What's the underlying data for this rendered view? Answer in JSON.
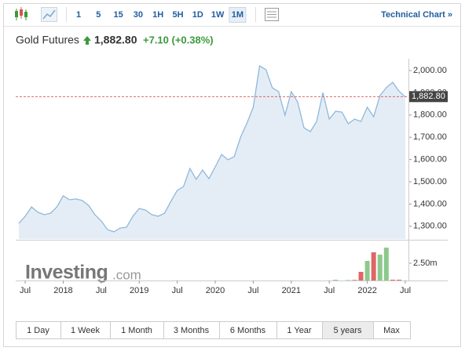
{
  "toolbar": {
    "intervals": [
      "1",
      "5",
      "15",
      "30",
      "1H",
      "5H",
      "1D",
      "1W",
      "1M"
    ],
    "selected_interval": 8,
    "technical_chart": "Technical Chart »"
  },
  "header": {
    "title": "Gold Futures",
    "change": "+7.10 (+0.38%)"
  },
  "chart_data": [
    {
      "type": "area",
      "x": [
        "2017-06",
        "2017-07",
        "2017-08",
        "2017-09",
        "2017-10",
        "2017-11",
        "2017-12",
        "2018-01",
        "2018-02",
        "2018-03",
        "2018-04",
        "2018-05",
        "2018-06",
        "2018-07",
        "2018-08",
        "2018-09",
        "2018-10",
        "2018-11",
        "2018-12",
        "2019-01",
        "2019-02",
        "2019-03",
        "2019-04",
        "2019-05",
        "2019-06",
        "2019-07",
        "2019-08",
        "2019-09",
        "2019-10",
        "2019-11",
        "2019-12",
        "2020-01",
        "2020-02",
        "2020-03",
        "2020-04",
        "2020-05",
        "2020-06",
        "2020-07",
        "2020-08",
        "2020-09",
        "2020-10",
        "2020-11",
        "2020-12",
        "2021-01",
        "2021-02",
        "2021-03",
        "2021-04",
        "2021-05",
        "2021-06",
        "2021-07",
        "2021-08",
        "2021-09",
        "2021-10",
        "2021-11",
        "2021-12",
        "2022-01",
        "2022-02",
        "2022-03",
        "2022-04",
        "2022-05",
        "2022-06",
        "2022-07"
      ],
      "values": [
        1313,
        1345,
        1387,
        1363,
        1352,
        1359,
        1387,
        1437,
        1419,
        1423,
        1416,
        1394,
        1352,
        1324,
        1285,
        1275,
        1292,
        1296,
        1345,
        1380,
        1373,
        1352,
        1345,
        1359,
        1412,
        1461,
        1479,
        1560,
        1511,
        1553,
        1514,
        1567,
        1623,
        1599,
        1613,
        1701,
        1764,
        1835,
        2021,
        2004,
        1923,
        1905,
        1799,
        1905,
        1859,
        1743,
        1725,
        1771,
        1901,
        1782,
        1817,
        1813,
        1761,
        1782,
        1771,
        1835,
        1792,
        1887,
        1923,
        1947,
        1908,
        1881
      ],
      "color": "#8fb8dc",
      "fill_color": "#e4edf6",
      "xlim": [
        "2017-06",
        "2022-07"
      ],
      "xticks": [
        {
          "value": "2017-07",
          "label": "Jul"
        },
        {
          "value": "2018-01",
          "label": "2018"
        },
        {
          "value": "2018-07",
          "label": "Jul"
        },
        {
          "value": "2019-01",
          "label": "2019"
        },
        {
          "value": "2019-07",
          "label": "Jul"
        },
        {
          "value": "2020-01",
          "label": "2020"
        },
        {
          "value": "2020-07",
          "label": "Jul"
        },
        {
          "value": "2021-01",
          "label": "2021"
        },
        {
          "value": "2021-07",
          "label": "Jul"
        },
        {
          "value": "2022-01",
          "label": "2022"
        },
        {
          "value": "2022-07",
          "label": "Jul"
        }
      ],
      "ylim": [
        1243,
        2053
      ],
      "yticks": [
        {
          "value": 1300,
          "label": "1,300.00"
        },
        {
          "value": 1400,
          "label": "1,400.00"
        },
        {
          "value": 1500,
          "label": "1,500.00"
        },
        {
          "value": 1600,
          "label": "1,600.00"
        },
        {
          "value": 1700,
          "label": "1,700.00"
        },
        {
          "value": 1800,
          "label": "1,800.00"
        },
        {
          "value": 1900,
          "label": "1,900.00"
        },
        {
          "value": 2000,
          "label": "2,000.00"
        }
      ],
      "last_value": {
        "value": 1882.8,
        "label": "1,882.80"
      },
      "last_value_color": "#e06666"
    },
    {
      "type": "bar",
      "x": [
        "2021-08",
        "2021-10",
        "2021-11",
        "2021-12",
        "2022-01",
        "2022-02",
        "2022-03",
        "2022-04",
        "2022-05",
        "2022-06"
      ],
      "values": [
        110000,
        60000,
        80000,
        1250000,
        2840000,
        4090000,
        3750000,
        4770000,
        110000,
        110000
      ],
      "colors": [
        "#8cc98c",
        "#8cc98c",
        "#e06666",
        "#e06666",
        "#8cc98c",
        "#e06666",
        "#8cc98c",
        "#8cc98c",
        "#e06666",
        "#e06666"
      ],
      "ylim": [
        0,
        5800000
      ],
      "yticks": [
        {
          "value": 2500000,
          "label": "2.50m"
        }
      ],
      "watermark": "Investing",
      "watermark_suffix": ".com"
    }
  ],
  "range_buttons": {
    "labels": [
      "1 Day",
      "1 Week",
      "1 Month",
      "3 Months",
      "6 Months",
      "1 Year",
      "5 years",
      "Max"
    ],
    "selected": 6
  }
}
